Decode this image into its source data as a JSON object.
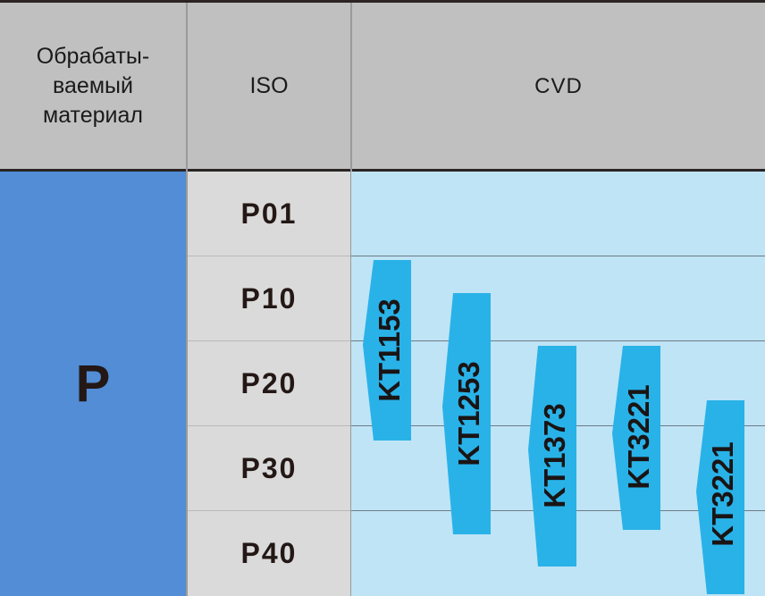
{
  "header": {
    "material_label": [
      "Обрабаты-",
      "ваемый",
      "материал"
    ],
    "iso_label": "ISO",
    "coating_label": "CVD"
  },
  "material_group": "P",
  "iso_rows": [
    "P01",
    "P10",
    "P20",
    "P30",
    "P40"
  ],
  "grades": [
    {
      "name": "KT1153",
      "range": [
        "P05",
        "P25"
      ]
    },
    {
      "name": "KT1253",
      "range": [
        "P10",
        "P35"
      ]
    },
    {
      "name": "KT1373",
      "range": [
        "P20",
        "P45"
      ]
    },
    {
      "name": "KT3221",
      "range": [
        "P20",
        "P40"
      ]
    },
    {
      "name": "KT3221",
      "range": [
        "P25",
        "P50"
      ]
    }
  ],
  "colors": {
    "header_bg": "#c0c0c0",
    "material_bg": "#528dd6",
    "iso_bg": "#dadada",
    "cvd_bg": "#bfe4f6",
    "grade_bar": "#29b2e8"
  }
}
